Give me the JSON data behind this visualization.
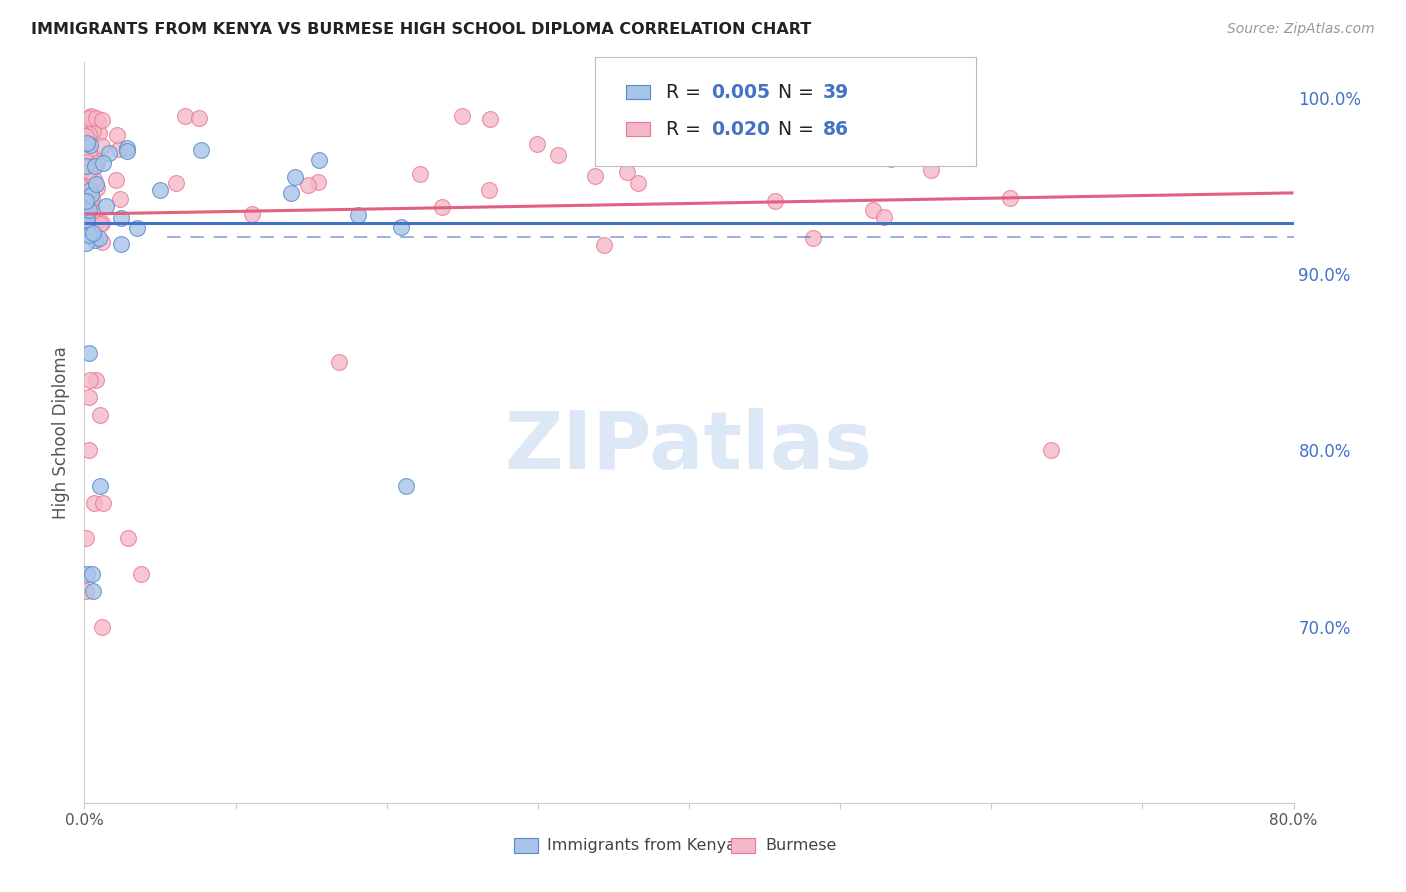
{
  "title": "IMMIGRANTS FROM KENYA VS BURMESE HIGH SCHOOL DIPLOMA CORRELATION CHART",
  "source": "Source: ZipAtlas.com",
  "ylabel": "High School Diploma",
  "legend_kenya": "Immigrants from Kenya",
  "legend_burmese": "Burmese",
  "legend_r_kenya": "0.005",
  "legend_n_kenya": "39",
  "legend_r_burmese": "0.020",
  "legend_n_burmese": "86",
  "kenya_fill_color": "#a8c4e8",
  "burmese_fill_color": "#f4b8c8",
  "kenya_edge_color": "#5588cc",
  "burmese_edge_color": "#e87890",
  "kenya_line_color": "#4472c4",
  "burmese_line_color": "#e06080",
  "right_axis_color": "#4472c4",
  "text_color_blue": "#4472c4",
  "background_color": "#ffffff",
  "watermark_color": "#dce8f5",
  "xlim": [
    0.0,
    0.8
  ],
  "ylim": [
    0.6,
    1.02
  ],
  "right_yticks": [
    0.7,
    0.8,
    0.9,
    1.0
  ],
  "right_yticklabels": [
    "70.0%",
    "80.0%",
    "90.0%",
    "100.0%"
  ],
  "burmese_line_y0": 0.934,
  "burmese_line_y1": 0.946,
  "kenya_line_y0": 0.929,
  "kenya_line_y1": 0.929,
  "dashed_line_y": 0.921,
  "dashed_line_x0": 0.055,
  "dashed_line_x1": 0.8
}
